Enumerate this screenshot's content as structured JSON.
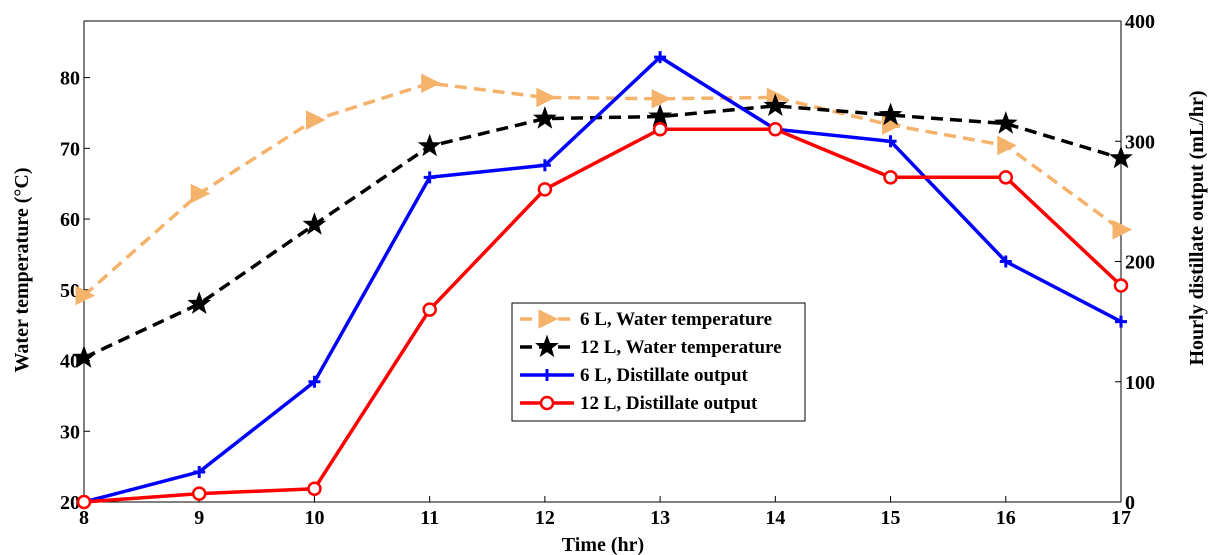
{
  "chart_data": {
    "type": "line",
    "xlabel": "Time (hr)",
    "ylabel": "Water temperature (°C)",
    "y2label": "Hourly distillate output (mL/hr)",
    "x": [
      8,
      9,
      10,
      11,
      12,
      13,
      14,
      15,
      16,
      17
    ],
    "xlim": [
      8,
      17
    ],
    "ylim": [
      20,
      88
    ],
    "y2lim": [
      0,
      400
    ],
    "xticks": [
      "8",
      "9",
      "10",
      "11",
      "12",
      "13",
      "14",
      "15",
      "16",
      "17"
    ],
    "yticks": [
      "20",
      "30",
      "40",
      "50",
      "60",
      "70",
      "80"
    ],
    "y2ticks": [
      "0",
      "100",
      "200",
      "300",
      "400"
    ],
    "grid": false,
    "legend_position": "center",
    "series": [
      {
        "name": "6 L,   Water temperature",
        "axis": "left",
        "color": "#F5B26B",
        "dash": "dashed",
        "marker": "triangle-right",
        "values": [
          49.2,
          63.6,
          74.0,
          79.2,
          77.2,
          77.0,
          77.2,
          73.3,
          70.4,
          58.5
        ]
      },
      {
        "name": "12 L, Water temperature",
        "axis": "left",
        "color": "#000000",
        "dash": "dashed",
        "marker": "star",
        "values": [
          40.4,
          48.0,
          59.2,
          70.3,
          74.2,
          74.5,
          76.0,
          74.7,
          73.5,
          68.6
        ]
      },
      {
        "name": "6 L,   Distillate output",
        "axis": "right",
        "color": "#0000FF",
        "dash": "solid",
        "marker": "plus",
        "values": [
          0,
          25,
          100,
          270,
          280,
          370,
          310,
          300,
          200,
          150
        ]
      },
      {
        "name": "12 L, Distillate output",
        "axis": "right",
        "color": "#FF0000",
        "dash": "solid",
        "marker": "circle",
        "values": [
          0,
          7,
          11,
          160,
          260,
          310,
          310,
          270,
          270,
          180
        ]
      }
    ]
  }
}
